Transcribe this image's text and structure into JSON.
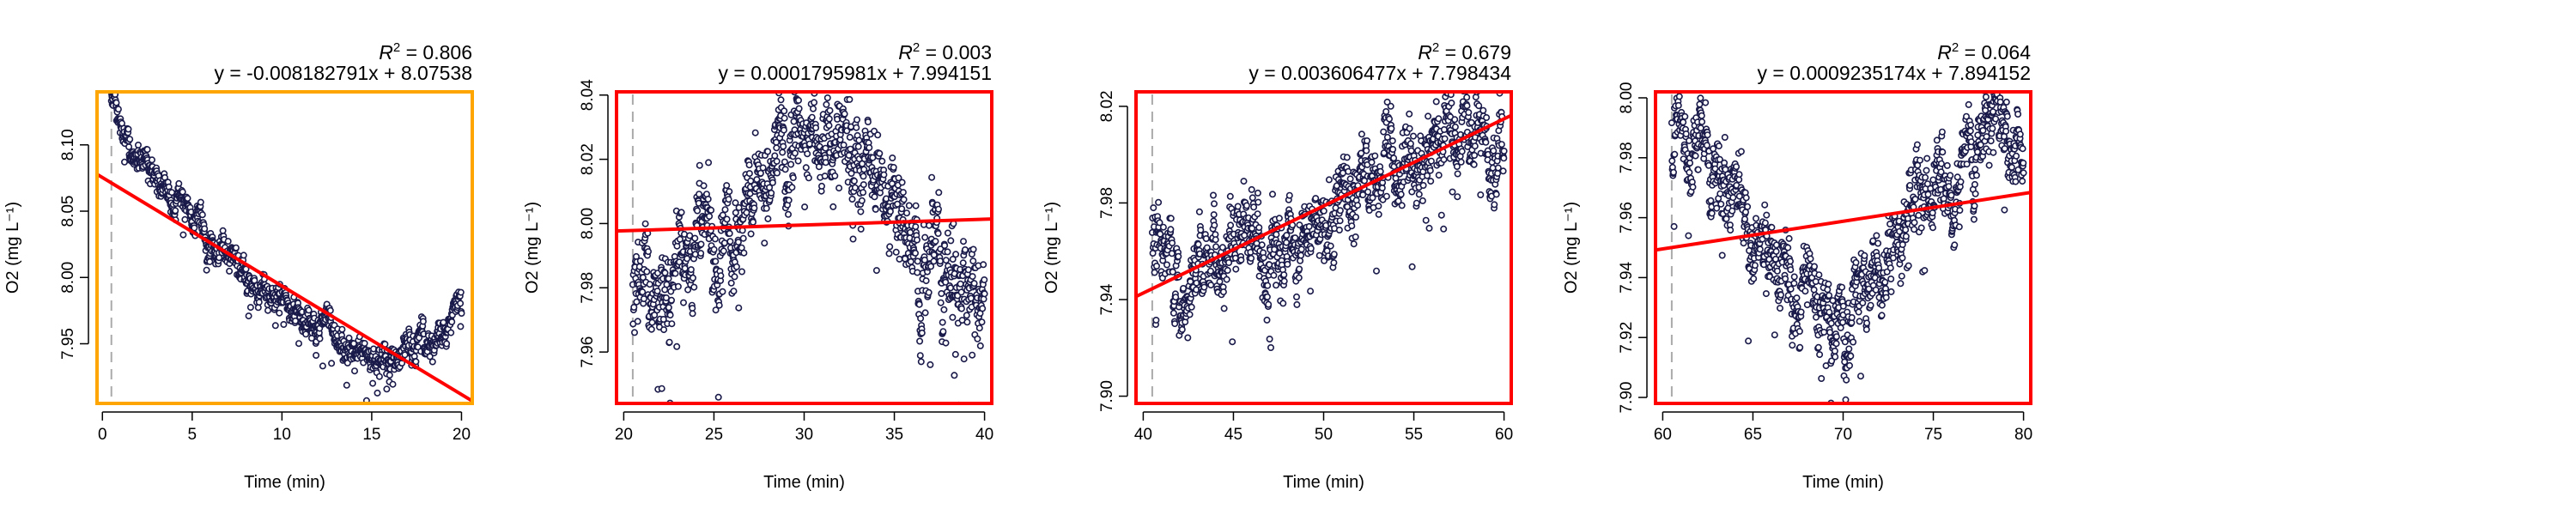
{
  "chart_data": [
    {
      "type": "scatter",
      "xlabel": "Time (min)",
      "ylabel": "O2 (mg L⁻¹)",
      "r2_label": "R",
      "r2_value": "0.806",
      "equation": "y = -0.008182791x + 8.07538",
      "slope": -0.008182791,
      "intercept": 8.07538,
      "frame_color": "#FFA500",
      "xlim": [
        -0.3,
        20.6
      ],
      "ylim": [
        7.905,
        8.14
      ],
      "xticks": [
        0,
        5,
        10,
        15,
        20
      ],
      "yticks": [
        7.95,
        8.0,
        8.05,
        8.1
      ],
      "ytick_labels": [
        "7.95",
        "8.00",
        "8.05",
        "8.10"
      ],
      "vline_x": 0.5,
      "fit_range": [
        -0.3,
        20.6
      ],
      "points_from": 0.5,
      "points_to": 20.0,
      "series": [
        {
          "trend": [
            [
              0.5,
              8.13
            ],
            [
              1.0,
              8.11
            ],
            [
              2.0,
              8.09
            ],
            [
              3.0,
              8.075
            ],
            [
              4.0,
              8.06
            ],
            [
              5.0,
              8.045
            ],
            [
              6.0,
              8.03
            ],
            [
              7.0,
              8.015
            ],
            [
              8.0,
              8.0
            ],
            [
              9.0,
              7.99
            ],
            [
              10.0,
              7.98
            ],
            [
              11.0,
              7.97
            ],
            [
              12.0,
              7.963
            ],
            [
              13.0,
              7.955
            ],
            [
              14.0,
              7.947
            ],
            [
              15.0,
              7.943
            ],
            [
              16.0,
              7.945
            ],
            [
              17.0,
              7.948
            ],
            [
              18.0,
              7.952
            ],
            [
              19.0,
              7.958
            ],
            [
              20.0,
              7.972
            ]
          ],
          "noise": 0.007
        }
      ]
    },
    {
      "type": "scatter",
      "xlabel": "Time (min)",
      "ylabel": "O2 (mg L⁻¹)",
      "r2_label": "R",
      "r2_value": "0.003",
      "equation": "y = 0.0001795981x + 7.994151",
      "slope": 0.0001795981,
      "intercept": 7.994151,
      "frame_color": "#FF0000",
      "xlim": [
        19.6,
        40.4
      ],
      "ylim": [
        7.944,
        8.041
      ],
      "xticks": [
        20,
        25,
        30,
        35,
        40
      ],
      "yticks": [
        7.96,
        7.98,
        8.0,
        8.02,
        8.04
      ],
      "ytick_labels": [
        "7.96",
        "7.98",
        "8.00",
        "8.02",
        "8.04"
      ],
      "vline_x": 20.5,
      "fit_range": [
        19.6,
        40.4
      ],
      "points_from": 20.5,
      "points_to": 40.0,
      "series": [
        {
          "trend": [
            [
              20.5,
              7.975
            ],
            [
              22.0,
              7.98
            ],
            [
              24.0,
              7.99
            ],
            [
              26.0,
              8.0
            ],
            [
              27.0,
              8.01
            ],
            [
              28.0,
              8.02
            ],
            [
              30.0,
              8.024
            ],
            [
              32.0,
              8.025
            ],
            [
              33.0,
              8.023
            ],
            [
              34.0,
              8.015
            ],
            [
              35.0,
              8.005
            ],
            [
              36.0,
              7.995
            ],
            [
              38.0,
              7.985
            ],
            [
              40.0,
              7.975
            ]
          ],
          "noise": 0.009
        }
      ]
    },
    {
      "type": "scatter",
      "xlabel": "Time (min)",
      "ylabel": "O2 (mg L⁻¹)",
      "r2_label": "R",
      "r2_value": "0.679",
      "equation": "y = 0.003606477x + 7.798434",
      "slope": 0.003606477,
      "intercept": 7.798434,
      "frame_color": "#FF0000",
      "xlim": [
        39.6,
        60.4
      ],
      "ylim": [
        7.897,
        8.026
      ],
      "xticks": [
        40,
        45,
        50,
        55,
        60
      ],
      "yticks": [
        7.9,
        7.94,
        7.98,
        8.02
      ],
      "ytick_labels": [
        "7.90",
        "7.94",
        "7.98",
        "8.02"
      ],
      "vline_x": 40.5,
      "fit_range": [
        39.6,
        60.4
      ],
      "points_from": 40.5,
      "points_to": 60.0,
      "series": [
        {
          "trend": [
            [
              40.5,
              7.96
            ],
            [
              42.0,
              7.955
            ],
            [
              44.0,
              7.95
            ],
            [
              46.0,
              7.96
            ],
            [
              48.0,
              7.965
            ],
            [
              50.0,
              7.978
            ],
            [
              52.0,
              7.988
            ],
            [
              54.0,
              7.998
            ],
            [
              56.0,
              8.005
            ],
            [
              58.0,
              8.008
            ],
            [
              60.0,
              8.0
            ]
          ],
          "noise": 0.01
        }
      ]
    },
    {
      "type": "scatter",
      "xlabel": "Time (min)",
      "ylabel": "O2 (mg L⁻¹)",
      "r2_label": "R",
      "r2_value": "0.064",
      "equation": "y = 0.0009235174x + 7.894152",
      "slope": 0.0009235174,
      "intercept": 7.894152,
      "frame_color": "#FF0000",
      "xlim": [
        59.6,
        80.4
      ],
      "ylim": [
        7.898,
        8.002
      ],
      "xticks": [
        60,
        65,
        70,
        75,
        80
      ],
      "yticks": [
        7.9,
        7.92,
        7.94,
        7.96,
        7.98,
        8.0
      ],
      "ytick_labels": [
        "7.90",
        "7.92",
        "7.94",
        "7.96",
        "7.98",
        "8.00"
      ],
      "vline_x": 60.5,
      "fit_range": [
        59.6,
        80.4
      ],
      "points_from": 60.5,
      "points_to": 80.0,
      "series": [
        {
          "trend": [
            [
              60.5,
              7.99
            ],
            [
              62.0,
              7.98
            ],
            [
              63.5,
              7.97
            ],
            [
              65.0,
              7.955
            ],
            [
              66.5,
              7.945
            ],
            [
              68.0,
              7.935
            ],
            [
              69.5,
              7.925
            ],
            [
              71.0,
              7.935
            ],
            [
              72.5,
              7.948
            ],
            [
              74.0,
              7.96
            ],
            [
              75.5,
              7.97
            ],
            [
              77.0,
              7.98
            ],
            [
              78.5,
              7.99
            ],
            [
              80.0,
              7.985
            ]
          ],
          "noise": 0.008
        }
      ]
    }
  ]
}
